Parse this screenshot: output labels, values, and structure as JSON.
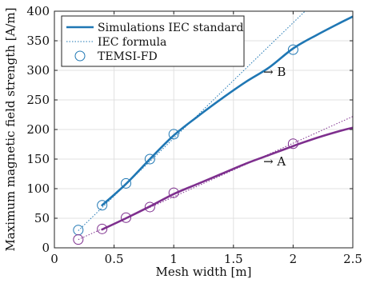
{
  "chart_data": {
    "type": "line",
    "title": "",
    "xlabel": "Mesh width [m]",
    "ylabel": "Maximum magnetic field strength [A/m]",
    "xlim": [
      0,
      2.5
    ],
    "ylim": [
      0,
      400
    ],
    "xticks": [
      0,
      0.5,
      1,
      1.5,
      2,
      2.5
    ],
    "yticks": [
      0,
      50,
      100,
      150,
      200,
      250,
      300,
      350,
      400
    ],
    "xtick_labels": [
      "0",
      "0.5",
      "1",
      "1.5",
      "2",
      "2.5"
    ],
    "ytick_labels": [
      "0",
      "50",
      "100",
      "150",
      "200",
      "250",
      "300",
      "350",
      "400"
    ],
    "grid": true,
    "legend_position": "top-left",
    "legend": [
      {
        "label": "Simulations IEC standard",
        "style": "solid-line"
      },
      {
        "label": "IEC formula",
        "style": "dotted-line"
      },
      {
        "label": "TEMSI-FD",
        "style": "circle-marker"
      }
    ],
    "series": [
      {
        "group": "B",
        "kind": "simulation",
        "color": "#1f77b4",
        "x": [
          0.4,
          0.6,
          0.8,
          1.0,
          1.2,
          1.4,
          1.6,
          1.8,
          2.0,
          2.2,
          2.4,
          2.5
        ],
        "y": [
          72,
          108,
          150,
          190,
          222,
          252,
          280,
          305,
          337,
          360,
          381,
          391
        ]
      },
      {
        "group": "B",
        "kind": "iec-formula",
        "color": "#1f77b4",
        "x": [
          0.2,
          2.1
        ],
        "y": [
          29,
          400
        ]
      },
      {
        "group": "B",
        "kind": "temsi-fd",
        "color": "#1f77b4",
        "x": [
          0.2,
          0.4,
          0.6,
          0.8,
          1.0,
          2.0
        ],
        "y": [
          30,
          72,
          109,
          150,
          192,
          335
        ]
      },
      {
        "group": "A",
        "kind": "simulation",
        "color": "#7e2f8e",
        "x": [
          0.4,
          0.6,
          0.8,
          1.0,
          1.2,
          1.4,
          1.6,
          1.8,
          2.0,
          2.2,
          2.4,
          2.5
        ],
        "y": [
          31,
          50,
          70,
          91,
          108,
          125,
          142,
          157,
          172,
          186,
          198,
          203
        ]
      },
      {
        "group": "A",
        "kind": "iec-formula",
        "color": "#7e2f8e",
        "x": [
          0.2,
          2.5
        ],
        "y": [
          14,
          222
        ]
      },
      {
        "group": "A",
        "kind": "temsi-fd",
        "color": "#7e2f8e",
        "x": [
          0.2,
          0.4,
          0.6,
          0.8,
          1.0,
          2.0
        ],
        "y": [
          14,
          32,
          51,
          69,
          93,
          176
        ]
      }
    ],
    "annotations": [
      {
        "text": "→ B",
        "x": 1.75,
        "y": 297
      },
      {
        "text": "→ A",
        "x": 1.75,
        "y": 146
      }
    ]
  },
  "colors": {
    "series_b": "#1f77b4",
    "series_a": "#7e2f8e",
    "grid": "#e0e0e0",
    "axis": "#222222"
  }
}
